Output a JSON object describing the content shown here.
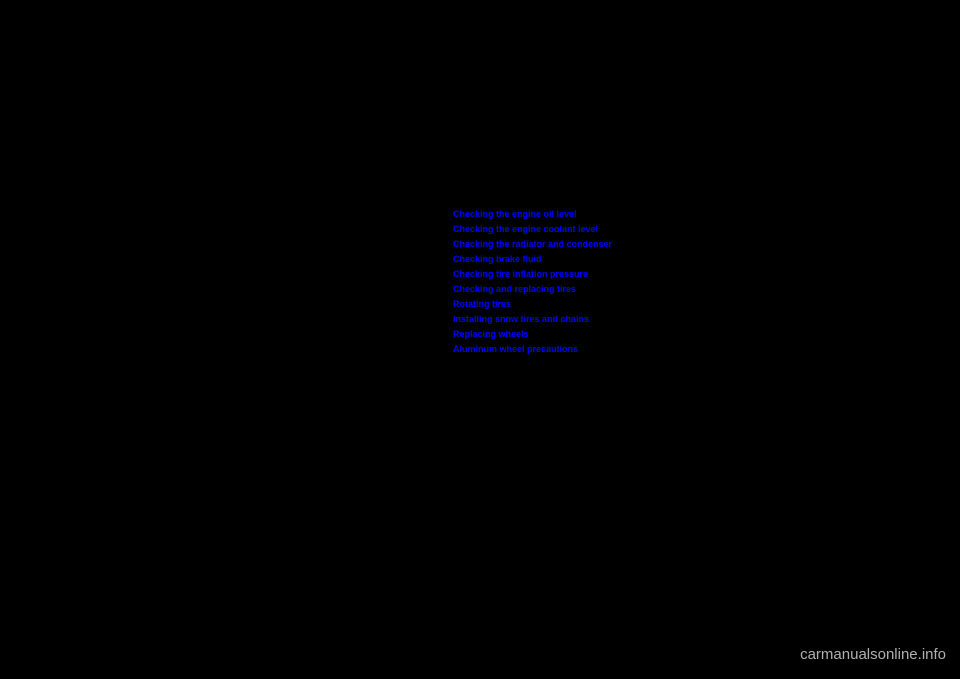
{
  "links": [
    {
      "label": "Checking the engine oil level"
    },
    {
      "label": "Checking the engine coolant level"
    },
    {
      "label": "Checking the radiator and condenser"
    },
    {
      "label": "Checking brake fluid"
    },
    {
      "label": "Checking tire inflation pressure"
    },
    {
      "label": "Checking and replacing tires"
    },
    {
      "label": "Rotating tires"
    },
    {
      "label": "Installing snow tires and chains"
    },
    {
      "label": "Replacing wheels"
    },
    {
      "label": "Aluminum wheel precautions"
    }
  ],
  "watermark": "carmanualsonline.info",
  "colors": {
    "background": "#000000",
    "link": "#0000ff",
    "watermark": "#b0b0b0"
  }
}
